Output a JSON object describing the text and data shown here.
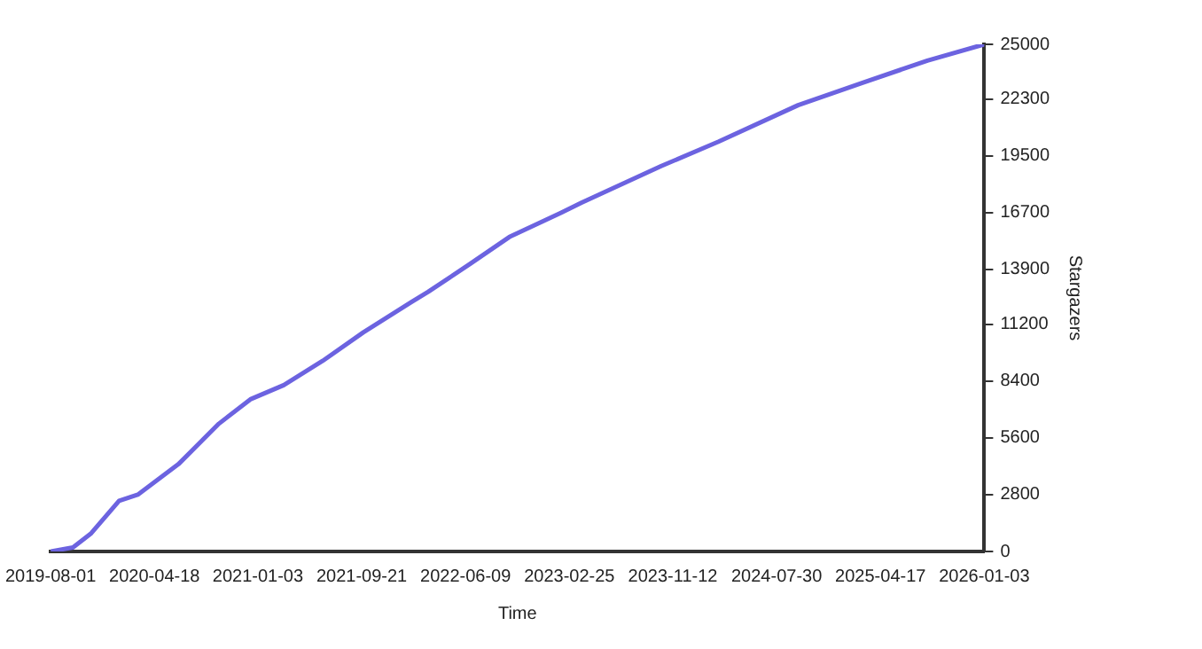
{
  "chart_data": {
    "type": "line",
    "xlabel": "Time",
    "ylabel": "Stargazers",
    "x": [
      "2019-08-01",
      "2019-09-26",
      "2019-11-11",
      "2020-01-20",
      "2020-03-07",
      "2020-06-17",
      "2020-09-27",
      "2020-12-15",
      "2021-03-09",
      "2021-06-15",
      "2021-09-25",
      "2022-01-24",
      "2022-03-07",
      "2022-06-22",
      "2022-09-27",
      "2023-02-04",
      "2023-03-28",
      "2023-10-14",
      "2024-03-06",
      "2024-09-22",
      "2025-03-03",
      "2025-08-13",
      "2026-01-03"
    ],
    "series": [
      {
        "color": "#6c63e0",
        "values": [
          0,
          200,
          900,
          2500,
          2800,
          4300,
          6300,
          7500,
          8200,
          9400,
          10800,
          12300,
          12800,
          14200,
          15500,
          16700,
          17200,
          19000,
          20200,
          22000,
          23100,
          24200,
          25000
        ]
      }
    ],
    "xlim": [
      "2019-08-01",
      "2026-01-03"
    ],
    "xticks": [
      "2019-08-01",
      "2020-04-18",
      "2021-01-03",
      "2021-09-21",
      "2022-06-09",
      "2023-02-25",
      "2023-11-12",
      "2024-07-30",
      "2025-04-17",
      "2026-01-03"
    ],
    "ylim": [
      0,
      25000
    ],
    "yticks": [
      0,
      2800,
      5600,
      8400,
      11200,
      13900,
      16700,
      19500,
      22300,
      25000
    ],
    "grid": false,
    "legend": false,
    "marker": "none",
    "line_style": "solid"
  }
}
